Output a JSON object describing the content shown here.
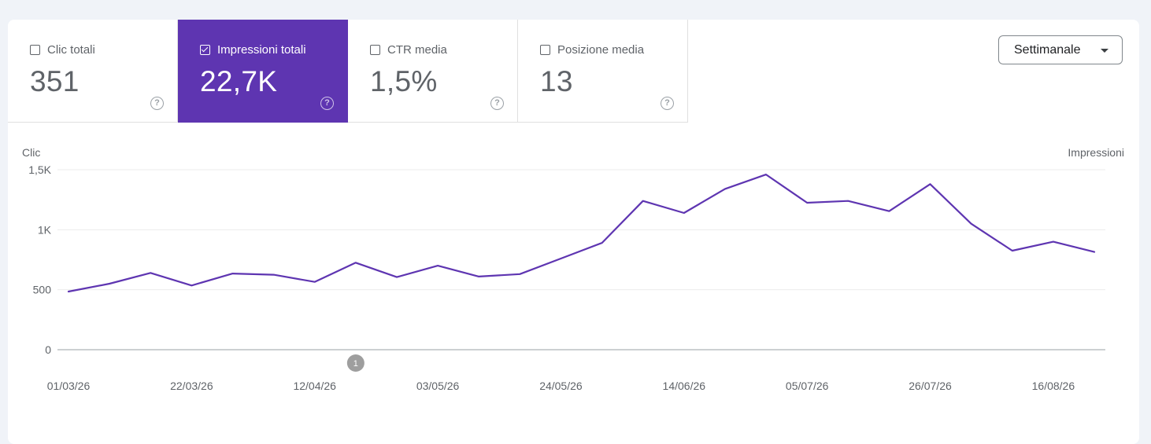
{
  "metrics": [
    {
      "label": "Clic totali",
      "value": "351",
      "selected": false
    },
    {
      "label": "Impressioni totali",
      "value": "22,7K",
      "selected": true
    },
    {
      "label": "CTR media",
      "value": "1,5%",
      "selected": false
    },
    {
      "label": "Posizione media",
      "value": "13",
      "selected": false
    }
  ],
  "period_select": {
    "label": "Settimanale"
  },
  "help_icon_glyph": "?",
  "annotation": {
    "label": "1",
    "x": "19/04/26"
  },
  "chart_data": {
    "type": "line",
    "left_axis_label": "Clic",
    "right_axis_label": "Impressioni",
    "y_ticks": [
      {
        "value": 0,
        "label": "0"
      },
      {
        "value": 500,
        "label": "500"
      },
      {
        "value": 1000,
        "label": "1K"
      },
      {
        "value": 1500,
        "label": "1,5K"
      }
    ],
    "ylim": [
      0,
      1500
    ],
    "x_tick_labels": [
      "01/03/26",
      "22/03/26",
      "12/04/26",
      "03/05/26",
      "24/05/26",
      "14/06/26",
      "05/07/26",
      "26/07/26",
      "16/08/26"
    ],
    "x": [
      "01/03/26",
      "08/03/26",
      "15/03/26",
      "22/03/26",
      "29/03/26",
      "05/04/26",
      "12/04/26",
      "19/04/26",
      "26/04/26",
      "03/05/26",
      "10/05/26",
      "17/05/26",
      "24/05/26",
      "31/05/26",
      "07/06/26",
      "14/06/26",
      "21/06/26",
      "28/06/26",
      "05/07/26",
      "12/07/26",
      "19/07/26",
      "26/07/26",
      "02/08/26",
      "09/08/26",
      "16/08/26",
      "23/08/26"
    ],
    "series": [
      {
        "name": "Impressioni",
        "color": "#5e35b1",
        "values": [
          485,
          550,
          640,
          535,
          635,
          625,
          565,
          725,
          605,
          700,
          610,
          630,
          760,
          890,
          1240,
          1140,
          1340,
          1460,
          1225,
          1240,
          1155,
          1380,
          1050,
          825,
          900,
          815
        ]
      }
    ],
    "grid": true,
    "legend": "none"
  }
}
